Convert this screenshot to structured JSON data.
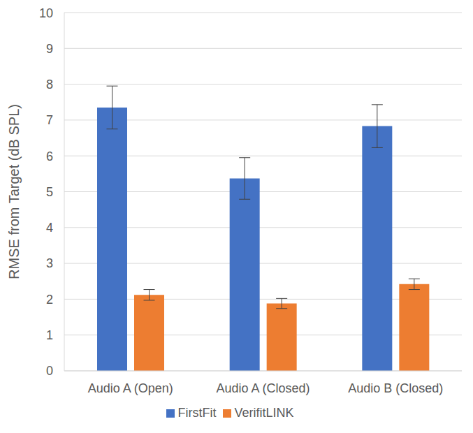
{
  "chart_data": {
    "type": "bar",
    "y_label": "RMSE from Target (dB SPL)",
    "categories": [
      "Audio A (Open)",
      "Audio A (Closed)",
      "Audio B (Closed)"
    ],
    "series": [
      {
        "name": "FirstFit",
        "color": "#4472c4",
        "values": [
          7.35,
          5.37,
          6.83
        ],
        "errors": [
          0.6,
          0.58,
          0.6
        ]
      },
      {
        "name": "VerifitLINK",
        "color": "#ed7d31",
        "values": [
          2.12,
          1.88,
          2.42
        ],
        "errors": [
          0.15,
          0.14,
          0.15
        ]
      }
    ],
    "ylim": [
      0,
      10
    ],
    "yticks": [
      0,
      1,
      2,
      3,
      4,
      5,
      6,
      7,
      8,
      9,
      10
    ],
    "grid": true,
    "legend": "bottom"
  }
}
